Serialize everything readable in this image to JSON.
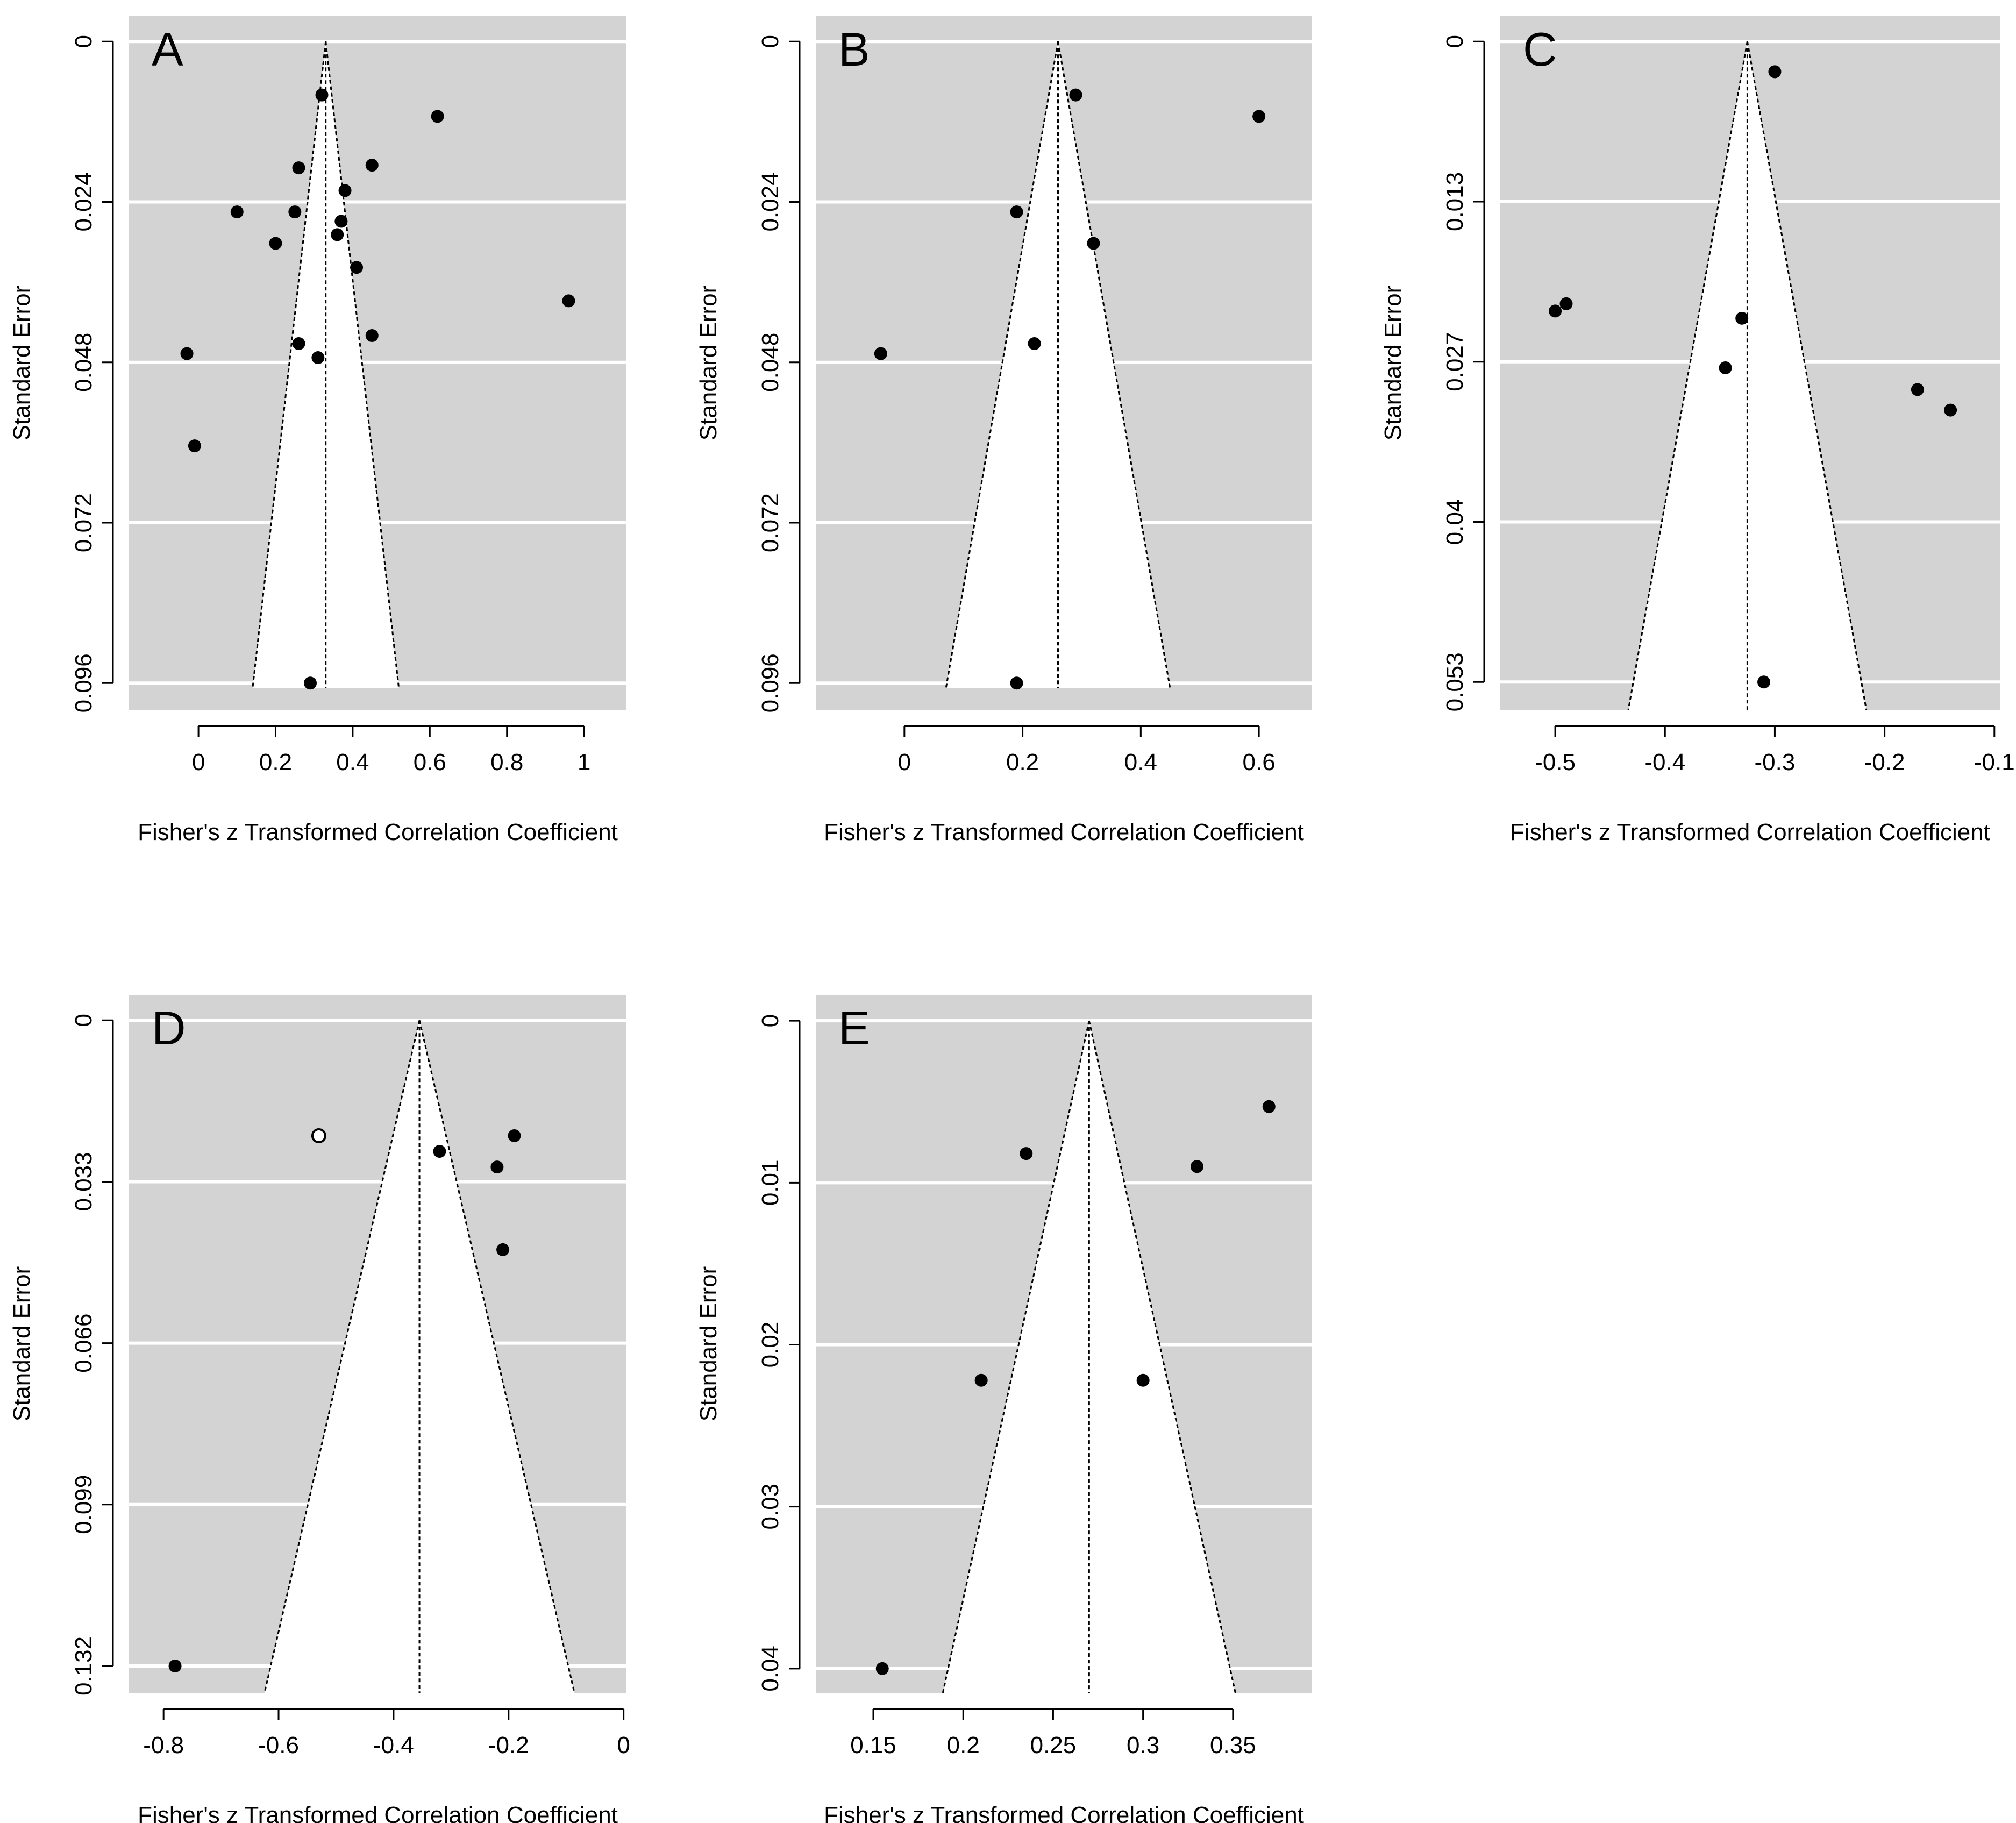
{
  "figure": {
    "colors": {
      "panel_background": "#d3d3d3",
      "funnel": "#ffffff",
      "gridline": "#ffffff",
      "point_fill": "#000000",
      "open_point_fill": "#ffffff",
      "dashed_line": "#000000"
    }
  },
  "chart_data": [
    {
      "type": "scatter",
      "subtype": "funnel",
      "panel": "A",
      "xlabel": "Fisher's z Transformed Correlation Coefficient",
      "ylabel": "Standard Error",
      "xlim": [
        -0.18,
        1.11
      ],
      "ylim": [
        0.1,
        -0.0038
      ],
      "xticks": [
        0,
        0.2,
        0.4,
        0.6,
        0.8,
        1
      ],
      "xtick_labels": [
        "0",
        "0.2",
        "0.4",
        "0.6",
        "0.8",
        "1"
      ],
      "yticks": [
        0,
        0.024,
        0.048,
        0.072,
        0.096
      ],
      "ytick_labels": [
        "0",
        "0.024",
        "0.048",
        "0.072",
        "0.096"
      ],
      "center": 0.33,
      "funnel_max_se": 0.0967,
      "points": [
        {
          "x": 0.32,
          "y": 0.008,
          "open": false
        },
        {
          "x": 0.62,
          "y": 0.0112,
          "open": false
        },
        {
          "x": 0.26,
          "y": 0.0189,
          "open": false
        },
        {
          "x": 0.45,
          "y": 0.0185,
          "open": false
        },
        {
          "x": 0.38,
          "y": 0.0223,
          "open": false
        },
        {
          "x": 0.1,
          "y": 0.0255,
          "open": false
        },
        {
          "x": 0.25,
          "y": 0.0255,
          "open": false
        },
        {
          "x": 0.37,
          "y": 0.0269,
          "open": false
        },
        {
          "x": 0.36,
          "y": 0.0289,
          "open": false
        },
        {
          "x": 0.2,
          "y": 0.0302,
          "open": false
        },
        {
          "x": 0.41,
          "y": 0.0338,
          "open": false
        },
        {
          "x": 0.96,
          "y": 0.0388,
          "open": false
        },
        {
          "x": 0.45,
          "y": 0.044,
          "open": false
        },
        {
          "x": 0.26,
          "y": 0.0452,
          "open": false
        },
        {
          "x": -0.03,
          "y": 0.0467,
          "open": false
        },
        {
          "x": 0.31,
          "y": 0.0473,
          "open": false
        },
        {
          "x": -0.01,
          "y": 0.0605,
          "open": false
        },
        {
          "x": 0.29,
          "y": 0.096,
          "open": false
        }
      ]
    },
    {
      "type": "scatter",
      "subtype": "funnel",
      "panel": "B",
      "xlabel": "Fisher's z Transformed Correlation Coefficient",
      "ylabel": "Standard Error",
      "xlim": [
        -0.15,
        0.69
      ],
      "ylim": [
        0.1,
        -0.0038
      ],
      "xticks": [
        0,
        0.2,
        0.4,
        0.6
      ],
      "xtick_labels": [
        "0",
        "0.2",
        "0.4",
        "0.6"
      ],
      "yticks": [
        0,
        0.024,
        0.048,
        0.072,
        0.096
      ],
      "ytick_labels": [
        "0",
        "0.024",
        "0.048",
        "0.072",
        "0.096"
      ],
      "center": 0.26,
      "funnel_max_se": 0.0967,
      "points": [
        {
          "x": 0.29,
          "y": 0.008,
          "open": false
        },
        {
          "x": 0.6,
          "y": 0.0112,
          "open": false
        },
        {
          "x": 0.19,
          "y": 0.0255,
          "open": false
        },
        {
          "x": 0.32,
          "y": 0.0302,
          "open": false
        },
        {
          "x": 0.22,
          "y": 0.0452,
          "open": false
        },
        {
          "x": -0.04,
          "y": 0.0467,
          "open": false
        },
        {
          "x": 0.19,
          "y": 0.096,
          "open": false
        }
      ]
    },
    {
      "type": "scatter",
      "subtype": "funnel",
      "panel": "C",
      "xlabel": "Fisher's z Transformed Correlation Coefficient",
      "ylabel": "Standard Error",
      "xlim": [
        -0.55,
        -0.095
      ],
      "ylim": [
        0.0553,
        -0.0021
      ],
      "xticks": [
        -0.5,
        -0.4,
        -0.3,
        -0.2,
        -0.1
      ],
      "xtick_labels": [
        "-0.5",
        "-0.4",
        "-0.3",
        "-0.2",
        "-0.1"
      ],
      "yticks": [
        0,
        0.01325,
        0.0265,
        0.03975,
        0.053
      ],
      "ytick_labels": [
        "0",
        "0.013",
        "0.027",
        "0.04",
        "0.053"
      ],
      "center": -0.325,
      "funnel_max_se": 0.0553,
      "points": [
        {
          "x": -0.3,
          "y": 0.0025,
          "open": false
        },
        {
          "x": -0.49,
          "y": 0.0217,
          "open": false
        },
        {
          "x": -0.5,
          "y": 0.0223,
          "open": false
        },
        {
          "x": -0.33,
          "y": 0.0229,
          "open": false
        },
        {
          "x": -0.345,
          "y": 0.027,
          "open": false
        },
        {
          "x": -0.17,
          "y": 0.0288,
          "open": false
        },
        {
          "x": -0.14,
          "y": 0.0305,
          "open": false
        },
        {
          "x": -0.31,
          "y": 0.053,
          "open": false
        }
      ]
    },
    {
      "type": "scatter",
      "subtype": "funnel",
      "panel": "D",
      "xlabel": "Fisher's z Transformed Correlation Coefficient",
      "ylabel": "Standard Error",
      "xlim": [
        -0.86,
        0.005
      ],
      "ylim": [
        0.1375,
        -0.0052
      ],
      "xticks": [
        -0.8,
        -0.6,
        -0.4,
        -0.2,
        0
      ],
      "xtick_labels": [
        "-0.8",
        "-0.6",
        "-0.4",
        "-0.2",
        "0"
      ],
      "yticks": [
        0,
        0.033,
        0.066,
        0.099,
        0.132
      ],
      "ytick_labels": [
        "0",
        "0.033",
        "0.066",
        "0.099",
        "0.132"
      ],
      "center": -0.355,
      "funnel_max_se": 0.1375,
      "points": [
        {
          "x": -0.53,
          "y": 0.0236,
          "open": true
        },
        {
          "x": -0.19,
          "y": 0.0236,
          "open": false
        },
        {
          "x": -0.32,
          "y": 0.0268,
          "open": false
        },
        {
          "x": -0.22,
          "y": 0.03,
          "open": false
        },
        {
          "x": -0.21,
          "y": 0.0469,
          "open": false
        },
        {
          "x": -0.78,
          "y": 0.132,
          "open": false
        }
      ]
    },
    {
      "type": "scatter",
      "subtype": "funnel",
      "panel": "E",
      "xlabel": "Fisher's z Transformed Correlation Coefficient",
      "ylabel": "Standard Error",
      "xlim": [
        0.118,
        0.394
      ],
      "ylim": [
        0.0415,
        -0.0016
      ],
      "xticks": [
        0.15,
        0.2,
        0.25,
        0.3,
        0.35
      ],
      "xtick_labels": [
        "0.15",
        "0.2",
        "0.25",
        "0.3",
        "0.35"
      ],
      "yticks": [
        0,
        0.01,
        0.02,
        0.03,
        0.04
      ],
      "ytick_labels": [
        "0",
        "0.01",
        "0.02",
        "0.03",
        "0.04"
      ],
      "center": 0.27,
      "funnel_max_se": 0.0415,
      "points": [
        {
          "x": 0.37,
          "y": 0.0053,
          "open": false
        },
        {
          "x": 0.235,
          "y": 0.0082,
          "open": false
        },
        {
          "x": 0.33,
          "y": 0.009,
          "open": false
        },
        {
          "x": 0.21,
          "y": 0.0222,
          "open": false
        },
        {
          "x": 0.3,
          "y": 0.0222,
          "open": false
        },
        {
          "x": 0.155,
          "y": 0.04,
          "open": false
        }
      ]
    }
  ]
}
